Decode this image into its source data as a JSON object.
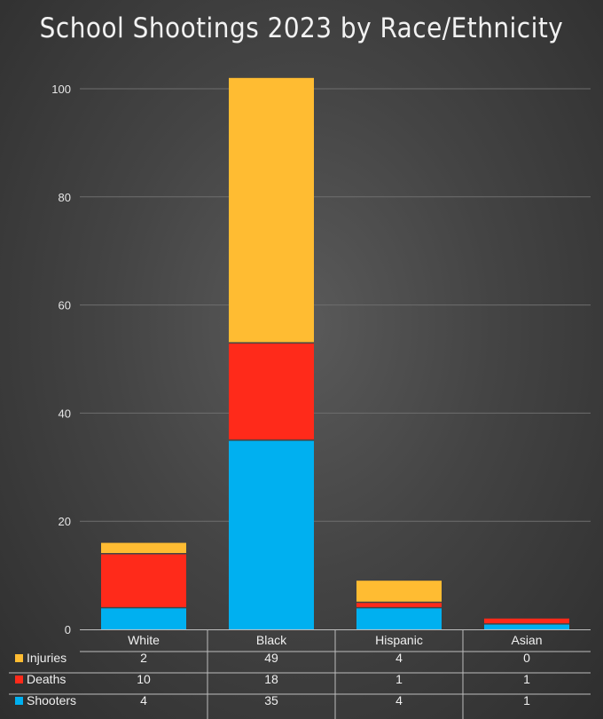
{
  "chart_data": {
    "type": "bar",
    "stacked": true,
    "title": "School Shootings 2023 by Race/Ethnicity",
    "categories": [
      "White",
      "Black",
      "Hispanic",
      "Asian"
    ],
    "series": [
      {
        "name": "Shooters",
        "values": [
          4,
          35,
          4,
          1
        ],
        "color": "#00b0f0"
      },
      {
        "name": "Deaths",
        "values": [
          10,
          18,
          1,
          1
        ],
        "color": "#ff2a1a"
      },
      {
        "name": "Injuries",
        "values": [
          2,
          49,
          4,
          0
        ],
        "color": "#ffbc32"
      }
    ],
    "table_order": [
      "Injuries",
      "Deaths",
      "Shooters"
    ],
    "ylim": [
      0,
      100
    ],
    "yticks": [
      0,
      20,
      40,
      60,
      80,
      100
    ],
    "grid": true,
    "legend": "data-table"
  }
}
